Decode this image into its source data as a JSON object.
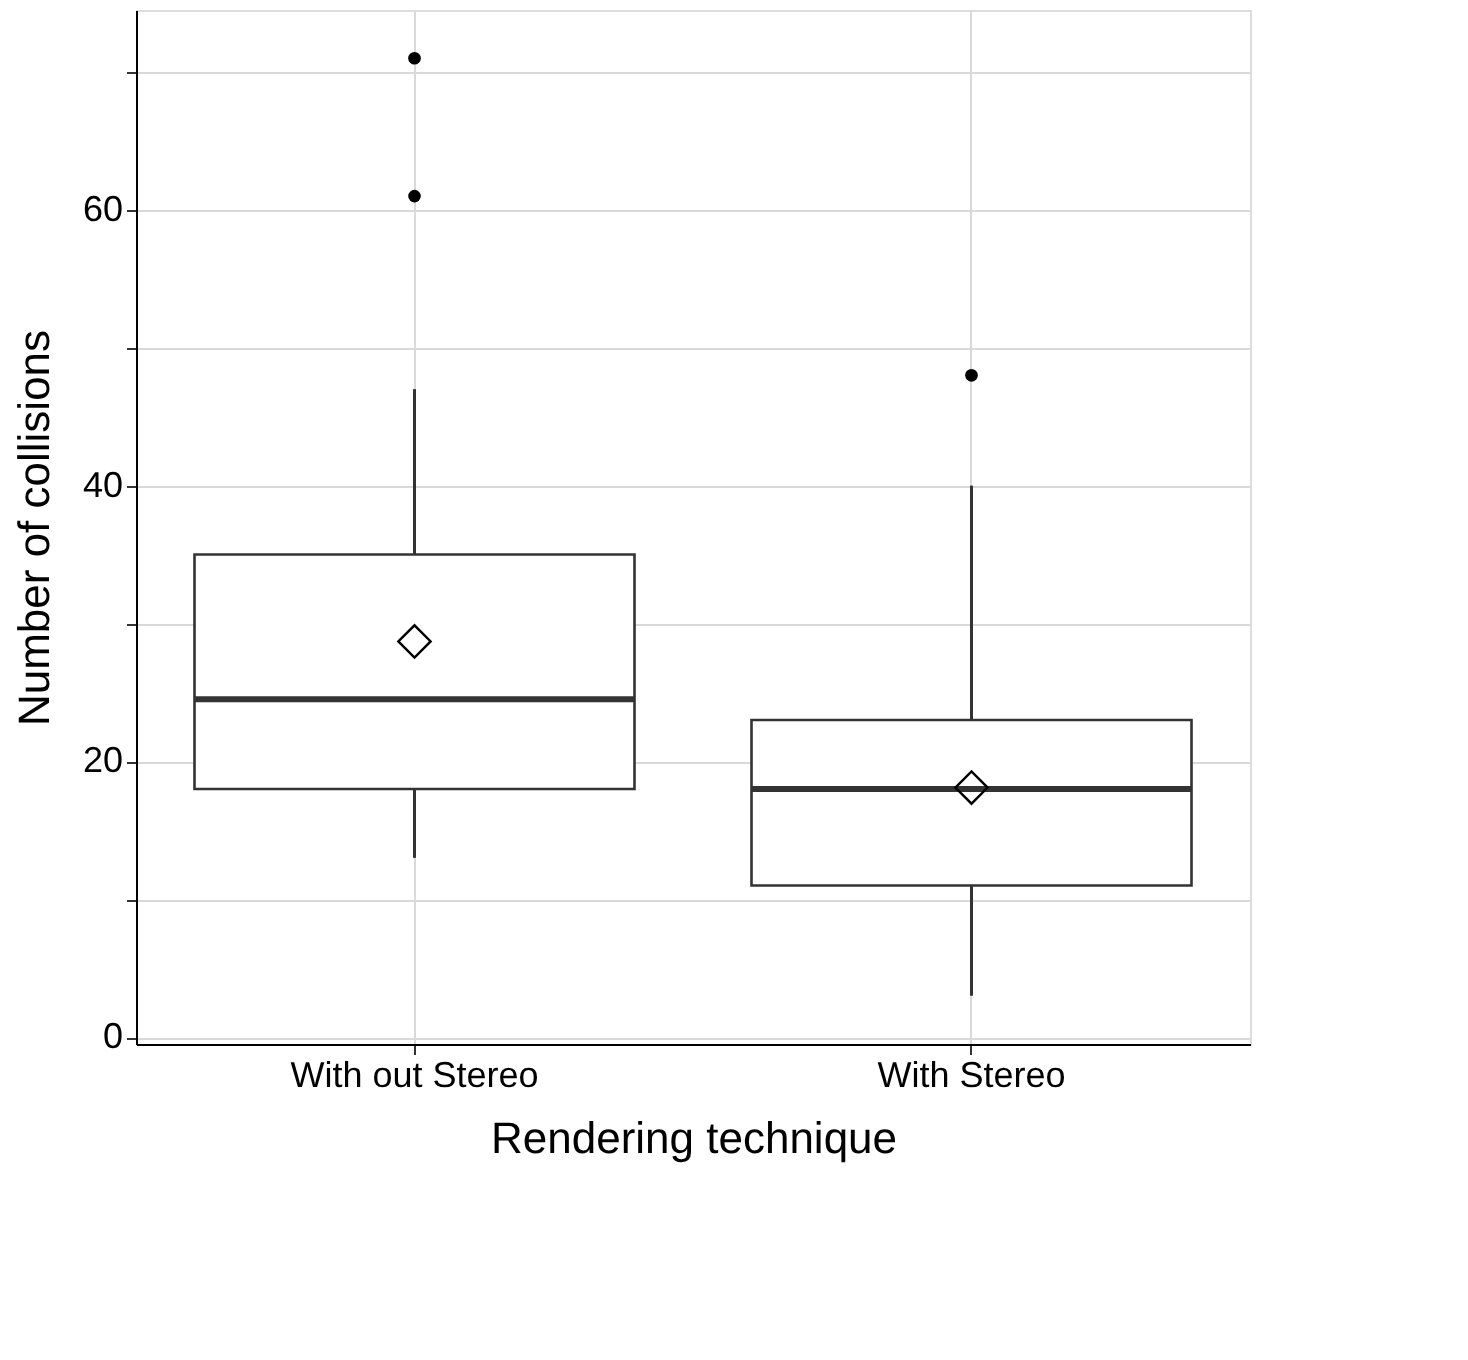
{
  "chart_data": {
    "type": "box",
    "xlabel": "Rendering technique",
    "ylabel": "Number of collisions",
    "categories": [
      "With out Stereo",
      "With Stereo"
    ],
    "boxes": [
      {
        "low": 13,
        "q1": 18,
        "median": 24.5,
        "q3": 35,
        "high": 47,
        "mean": 28.7,
        "outliers": [
          61,
          71
        ]
      },
      {
        "low": 3,
        "q1": 11,
        "median": 18,
        "q3": 23,
        "high": 40,
        "mean": 18.1,
        "outliers": [
          48
        ]
      }
    ],
    "ylim": [
      -0.5,
      74.5
    ],
    "yticks": [
      0,
      {
        "value": 10,
        "label": null
      },
      20,
      {
        "value": 30,
        "label": null
      },
      40,
      {
        "value": 50,
        "label": null
      },
      60,
      {
        "value": 70,
        "label": null
      }
    ],
    "grid": true
  }
}
